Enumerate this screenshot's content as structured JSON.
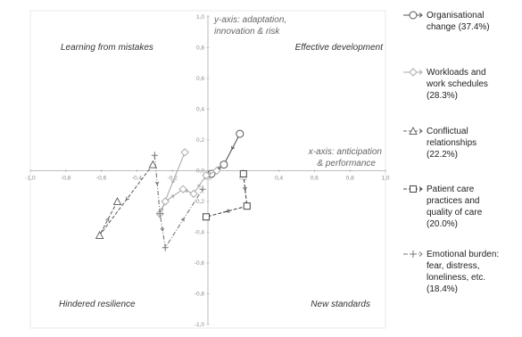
{
  "chart_data": {
    "type": "line",
    "title": "",
    "xlabel": "x-axis: anticipation & performance",
    "ylabel": "y-axis: adaptation, innovation & risk",
    "xlim": [
      -1.0,
      1.0
    ],
    "ylim": [
      -1.0,
      1.0
    ],
    "x_ticks": [
      "-1,0",
      "-0,8",
      "-0,6",
      "-0,4",
      "-0,2",
      "0,0",
      "0,2",
      "0,4",
      "0,6",
      "0,8",
      "1,0"
    ],
    "y_ticks": [
      "1,0",
      "0,8",
      "0,6",
      "0,4",
      "0,2",
      "0,0",
      "-0,2",
      "-0,4",
      "-0,6",
      "-0,8",
      "-1,0"
    ],
    "grid": false,
    "legend_position": "right",
    "quadrants": {
      "top_left": "Learning from mistakes",
      "top_right": "Effective development",
      "bottom_left": "Hindered resilience",
      "bottom_right": "New standards"
    },
    "axis_notes": {
      "y": [
        "y-axis: adaptation,",
        "innovation & risk"
      ],
      "x": [
        "x-axis: anticipation",
        "& performance"
      ]
    },
    "series": [
      {
        "name": "Organisational change (37.4%)",
        "legend_lines": [
          "Organisational",
          "change (37.4%)"
        ],
        "marker": "circle",
        "dash": "solid",
        "color": "#555555",
        "x": [
          0.18,
          0.09,
          0.02
        ],
        "y": [
          0.24,
          0.04,
          -0.02
        ],
        "labels": [
          "",
          "",
          ""
        ]
      },
      {
        "name": "Workloads and work schedules (28.3%)",
        "legend_lines": [
          "Workloads and",
          "work schedules",
          "(28.3%)"
        ],
        "marker": "diamond",
        "dash": "solid",
        "color": "#aaaaaa",
        "x": [
          -0.13,
          -0.27,
          -0.24,
          -0.14,
          -0.08,
          -0.01,
          0.05
        ],
        "y": [
          0.12,
          -0.28,
          -0.2,
          -0.12,
          -0.15,
          -0.03,
          0.0
        ],
        "labels": [
          "",
          "",
          "",
          "",
          "",
          "",
          ""
        ]
      },
      {
        "name": "Conflictual relationships (22.2%)",
        "legend_lines": [
          "Conflictual",
          "relationships",
          "(22.2%)"
        ],
        "marker": "triangle",
        "dash": "dashed",
        "color": "#666666",
        "x": [
          -0.31,
          -0.61,
          -0.51
        ],
        "y": [
          0.04,
          -0.42,
          -0.2
        ],
        "labels": [
          "",
          "",
          ""
        ]
      },
      {
        "name": "Patient care practices and quality of care (20.0%)",
        "legend_lines": [
          "Patient care",
          "practices and",
          "quality of care",
          "(20.0%)"
        ],
        "marker": "square",
        "dash": "dashed",
        "color": "#444444",
        "x": [
          0.2,
          0.22,
          -0.01
        ],
        "y": [
          -0.02,
          -0.23,
          -0.3
        ],
        "labels": [
          "",
          "",
          ""
        ]
      },
      {
        "name": "Emotional burden: fear, distress, loneliness, etc. (18.4%)",
        "legend_lines": [
          "Emotional burden:",
          "fear, distress,",
          "loneliness, etc.",
          "(18.4%)"
        ],
        "marker": "cross",
        "dash": "dashdot",
        "color": "#777777",
        "x": [
          -0.3,
          -0.27,
          -0.24,
          -0.03
        ],
        "y": [
          0.1,
          -0.28,
          -0.5,
          -0.12
        ],
        "labels": [
          "",
          "",
          "",
          ""
        ]
      }
    ]
  }
}
